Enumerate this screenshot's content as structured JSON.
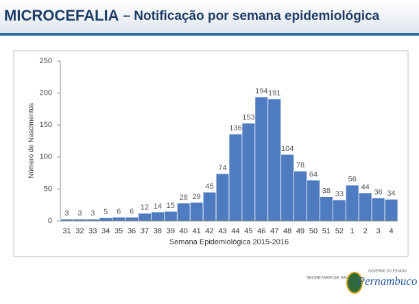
{
  "chart_data": {
    "type": "bar",
    "title": "MICROCEFALIA",
    "subtitle": "– Notificação por semana epidemiológica",
    "x_label": "Semana Epidemiológica 2015-2016",
    "y_label": "Número de Nascimentos",
    "categories": [
      "31",
      "32",
      "33",
      "34",
      "35",
      "36",
      "37",
      "38",
      "39",
      "40",
      "41",
      "42",
      "43",
      "44",
      "45",
      "46",
      "47",
      "48",
      "49",
      "50",
      "51",
      "52",
      "1",
      "2",
      "3",
      "4"
    ],
    "values": [
      3,
      3,
      3,
      5,
      6,
      6,
      12,
      14,
      15,
      28,
      29,
      45,
      74,
      136,
      153,
      194,
      191,
      104,
      78,
      64,
      38,
      33,
      56,
      44,
      36,
      34
    ],
    "color": "#4f7cc0",
    "ylim": [
      0,
      250
    ],
    "yticks": [
      0,
      50,
      100,
      150,
      200,
      250
    ],
    "grid": false
  },
  "footer": {
    "secretaria": "SECRETARIA DE SAÚDE",
    "governo": "GOVERNO DO ESTADO",
    "state": "Pernambuco"
  }
}
